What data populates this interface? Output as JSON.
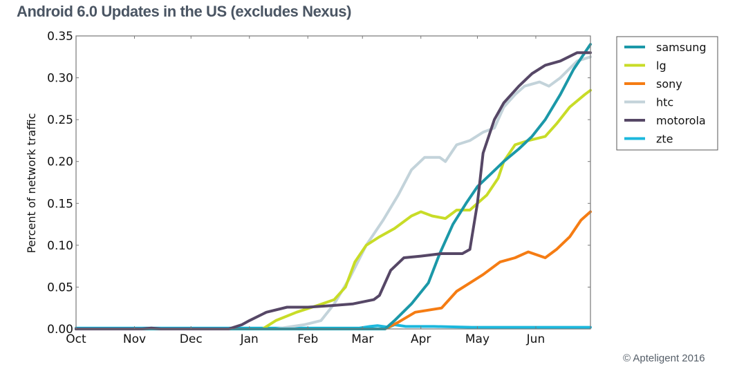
{
  "page": {
    "title": "Android 6.0 Updates in the US (excludes Nexus)",
    "credit": "© Apteligent 2016"
  },
  "chart_data": {
    "type": "line",
    "title": "Android 6.0 Updates in the US (excludes Nexus)",
    "xlabel": "",
    "ylabel": "Percent of network traffic",
    "x_unit": "days since Oct 1 (2015)",
    "xlim": [
      0,
      273
    ],
    "ylim": [
      0,
      0.35
    ],
    "grid": false,
    "legend_position": "outside-right-top",
    "x_ticks": [
      {
        "label": "Oct",
        "x": 0
      },
      {
        "label": "Nov",
        "x": 31
      },
      {
        "label": "Dec",
        "x": 61
      },
      {
        "label": "Jan",
        "x": 92
      },
      {
        "label": "Feb",
        "x": 123
      },
      {
        "label": "Mar",
        "x": 152
      },
      {
        "label": "Apr",
        "x": 183
      },
      {
        "label": "May",
        "x": 213
      },
      {
        "label": "Jun",
        "x": 244
      }
    ],
    "y_ticks": [
      {
        "label": "0.00",
        "y": 0.0
      },
      {
        "label": "0.05",
        "y": 0.05
      },
      {
        "label": "0.10",
        "y": 0.1
      },
      {
        "label": "0.15",
        "y": 0.15
      },
      {
        "label": "0.20",
        "y": 0.2
      },
      {
        "label": "0.25",
        "y": 0.25
      },
      {
        "label": "0.30",
        "y": 0.3
      },
      {
        "label": "0.35",
        "y": 0.35
      }
    ],
    "series": [
      {
        "name": "samsung",
        "color": "#1b98a8",
        "points": [
          [
            0,
            0
          ],
          [
            164,
            0
          ],
          [
            169,
            0.01
          ],
          [
            178,
            0.03
          ],
          [
            187,
            0.055
          ],
          [
            193,
            0.09
          ],
          [
            200,
            0.125
          ],
          [
            207,
            0.15
          ],
          [
            213,
            0.17
          ],
          [
            220,
            0.185
          ],
          [
            227,
            0.2
          ],
          [
            235,
            0.215
          ],
          [
            242,
            0.23
          ],
          [
            249,
            0.25
          ],
          [
            257,
            0.28
          ],
          [
            264,
            0.31
          ],
          [
            270,
            0.33
          ],
          [
            273,
            0.34
          ]
        ]
      },
      {
        "name": "lg",
        "color": "#c8dc27",
        "points": [
          [
            0,
            0
          ],
          [
            99,
            0
          ],
          [
            106,
            0.01
          ],
          [
            117,
            0.02
          ],
          [
            128,
            0.028
          ],
          [
            137,
            0.035
          ],
          [
            143,
            0.05
          ],
          [
            148,
            0.08
          ],
          [
            154,
            0.1
          ],
          [
            161,
            0.11
          ],
          [
            169,
            0.12
          ],
          [
            178,
            0.135
          ],
          [
            183,
            0.14
          ],
          [
            189,
            0.135
          ],
          [
            196,
            0.132
          ],
          [
            202,
            0.142
          ],
          [
            209,
            0.142
          ],
          [
            213,
            0.15
          ],
          [
            218,
            0.16
          ],
          [
            224,
            0.18
          ],
          [
            227,
            0.2
          ],
          [
            233,
            0.22
          ],
          [
            240,
            0.225
          ],
          [
            249,
            0.23
          ],
          [
            255,
            0.245
          ],
          [
            262,
            0.265
          ],
          [
            270,
            0.28
          ],
          [
            273,
            0.285
          ]
        ]
      },
      {
        "name": "sony",
        "color": "#f57c13",
        "points": [
          [
            0,
            0
          ],
          [
            164,
            0
          ],
          [
            171,
            0.008
          ],
          [
            180,
            0.02
          ],
          [
            194,
            0.025
          ],
          [
            202,
            0.045
          ],
          [
            209,
            0.055
          ],
          [
            216,
            0.065
          ],
          [
            225,
            0.08
          ],
          [
            233,
            0.085
          ],
          [
            240,
            0.092
          ],
          [
            249,
            0.085
          ],
          [
            255,
            0.095
          ],
          [
            262,
            0.11
          ],
          [
            268,
            0.13
          ],
          [
            273,
            0.14
          ]
        ]
      },
      {
        "name": "htc",
        "color": "#c3d3da",
        "points": [
          [
            0,
            0
          ],
          [
            106,
            0
          ],
          [
            121,
            0.005
          ],
          [
            130,
            0.01
          ],
          [
            137,
            0.03
          ],
          [
            145,
            0.06
          ],
          [
            154,
            0.1
          ],
          [
            163,
            0.13
          ],
          [
            171,
            0.16
          ],
          [
            178,
            0.19
          ],
          [
            185,
            0.205
          ],
          [
            193,
            0.205
          ],
          [
            196,
            0.2
          ],
          [
            202,
            0.22
          ],
          [
            209,
            0.225
          ],
          [
            216,
            0.235
          ],
          [
            222,
            0.24
          ],
          [
            227,
            0.265
          ],
          [
            233,
            0.28
          ],
          [
            238,
            0.29
          ],
          [
            246,
            0.295
          ],
          [
            251,
            0.29
          ],
          [
            257,
            0.3
          ],
          [
            266,
            0.32
          ],
          [
            273,
            0.325
          ]
        ]
      },
      {
        "name": "motorola",
        "color": "#564766",
        "points": [
          [
            0,
            0
          ],
          [
            35,
            0
          ],
          [
            40,
            0.001
          ],
          [
            45,
            0
          ],
          [
            81,
            0
          ],
          [
            88,
            0.005
          ],
          [
            92,
            0.01
          ],
          [
            101,
            0.02
          ],
          [
            112,
            0.026
          ],
          [
            123,
            0.026
          ],
          [
            136,
            0.028
          ],
          [
            147,
            0.03
          ],
          [
            158,
            0.035
          ],
          [
            161,
            0.04
          ],
          [
            167,
            0.07
          ],
          [
            174,
            0.085
          ],
          [
            183,
            0.087
          ],
          [
            194,
            0.09
          ],
          [
            205,
            0.09
          ],
          [
            209,
            0.095
          ],
          [
            213,
            0.15
          ],
          [
            216,
            0.21
          ],
          [
            222,
            0.25
          ],
          [
            227,
            0.27
          ],
          [
            235,
            0.29
          ],
          [
            242,
            0.305
          ],
          [
            249,
            0.315
          ],
          [
            257,
            0.32
          ],
          [
            266,
            0.33
          ],
          [
            273,
            0.33
          ]
        ]
      },
      {
        "name": "zte",
        "color": "#1cb8dd",
        "points": [
          [
            0,
            0.001
          ],
          [
            150,
            0.001
          ],
          [
            156,
            0.003
          ],
          [
            160,
            0.004
          ],
          [
            166,
            0.002
          ],
          [
            169,
            0.005
          ],
          [
            175,
            0.003
          ],
          [
            190,
            0.003
          ],
          [
            210,
            0.002
          ],
          [
            240,
            0.002
          ],
          [
            273,
            0.002
          ]
        ]
      }
    ]
  }
}
